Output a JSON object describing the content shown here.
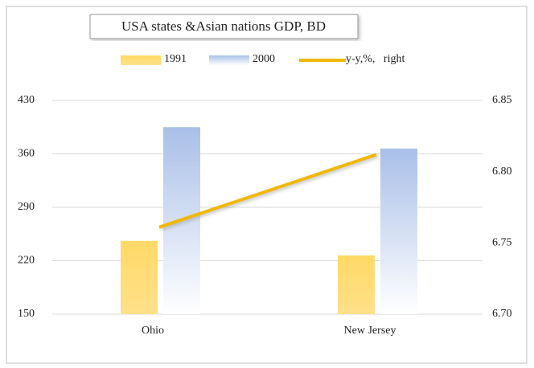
{
  "chart_data": {
    "type": "bar",
    "title": "USA states &Asian nations GDP, BD",
    "categories": [
      "Ohio",
      "New Jersey"
    ],
    "series": [
      {
        "name": "1991",
        "color": "#ffd966",
        "values": [
          246,
          227
        ]
      },
      {
        "name": "2000",
        "color": "#a9bfe8",
        "values": [
          395,
          367
        ]
      },
      {
        "name": "y-y,%,   right",
        "color": "#f0b800",
        "type": "line",
        "axis": "y2",
        "values": [
          6.761,
          6.812
        ]
      }
    ],
    "ylim": [
      150,
      430
    ],
    "yticks": [
      150,
      220,
      290,
      360,
      430
    ],
    "y2lim": [
      6.7,
      6.85
    ],
    "y2ticks": [
      {
        "value": 6.7,
        "label": "6.70"
      },
      6.75,
      {
        "value": 6.8,
        "label": "6.80"
      },
      6.85
    ],
    "grid": true,
    "legend": "top"
  }
}
